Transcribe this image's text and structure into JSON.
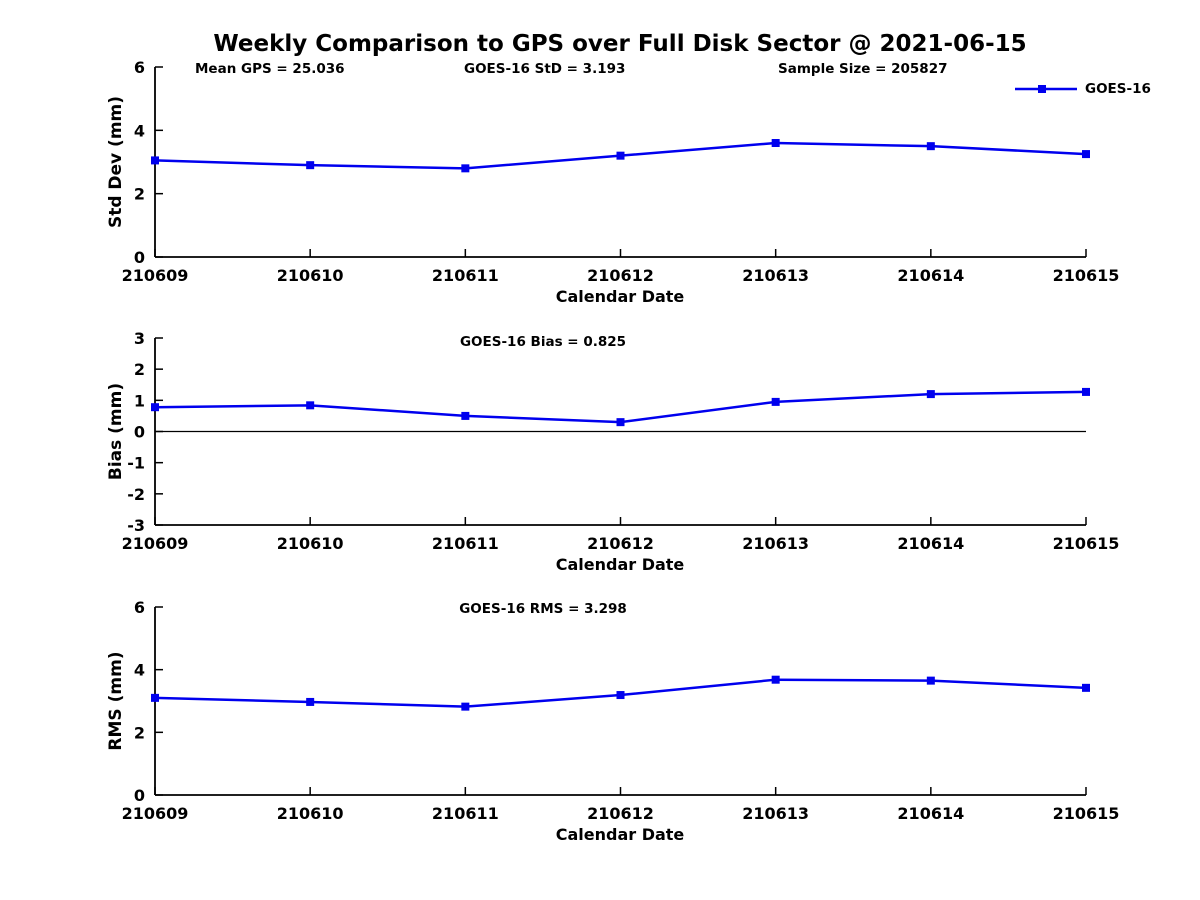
{
  "page": {
    "title": "Weekly Comparison to GPS over Full Disk Sector @ 2021-06-15",
    "annotations": {
      "mean_gps": "Mean GPS = 25.036",
      "goes_std": "GOES-16 StD = 3.193",
      "sample_size": "Sample Size = 205827"
    },
    "legend": {
      "label": "GOES-16",
      "color": "#0000EE",
      "position": "top-right"
    },
    "colors": {
      "series": "#0000EE",
      "axis": "#000000",
      "text": "#000000",
      "zero_line": "#000000",
      "background": "#FFFFFF"
    }
  },
  "chart_data": [
    {
      "type": "line",
      "panel": "std_dev",
      "title": "",
      "categories": [
        "210609",
        "210610",
        "210611",
        "210612",
        "210613",
        "210614",
        "210615"
      ],
      "series": [
        {
          "name": "GOES-16",
          "color": "#0000EE",
          "marker": "square",
          "values": [
            3.05,
            2.9,
            2.8,
            3.2,
            3.6,
            3.5,
            3.25
          ]
        }
      ],
      "xlabel": "Calendar Date",
      "ylabel": "Std Dev (mm)",
      "ylim": [
        0,
        6
      ],
      "yticks": [
        0,
        2,
        4,
        6
      ],
      "grid": false,
      "legend_position": "top-right",
      "annotations": [
        "Mean GPS = 25.036",
        "GOES-16 StD = 3.193",
        "Sample Size = 205827"
      ]
    },
    {
      "type": "line",
      "panel": "bias",
      "title": "GOES-16 Bias  = 0.825",
      "categories": [
        "210609",
        "210610",
        "210611",
        "210612",
        "210613",
        "210614",
        "210615"
      ],
      "series": [
        {
          "name": "GOES-16",
          "color": "#0000EE",
          "marker": "square",
          "values": [
            0.78,
            0.84,
            0.5,
            0.3,
            0.95,
            1.2,
            1.27
          ]
        }
      ],
      "xlabel": "Calendar Date",
      "ylabel": "Bias (mm)",
      "ylim": [
        -3,
        3
      ],
      "yticks": [
        -3,
        -2,
        -1,
        0,
        1,
        2,
        3
      ],
      "zero_line": true,
      "grid": false
    },
    {
      "type": "line",
      "panel": "rms",
      "title": "GOES-16 RMS = 3.298",
      "categories": [
        "210609",
        "210610",
        "210611",
        "210612",
        "210613",
        "210614",
        "210615"
      ],
      "series": [
        {
          "name": "GOES-16",
          "color": "#0000EE",
          "marker": "square",
          "values": [
            3.1,
            2.97,
            2.82,
            3.19,
            3.68,
            3.65,
            3.42
          ]
        }
      ],
      "xlabel": "Calendar Date",
      "ylabel": "RMS (mm)",
      "ylim": [
        0,
        6
      ],
      "yticks": [
        0,
        2,
        4,
        6
      ],
      "grid": false
    }
  ]
}
